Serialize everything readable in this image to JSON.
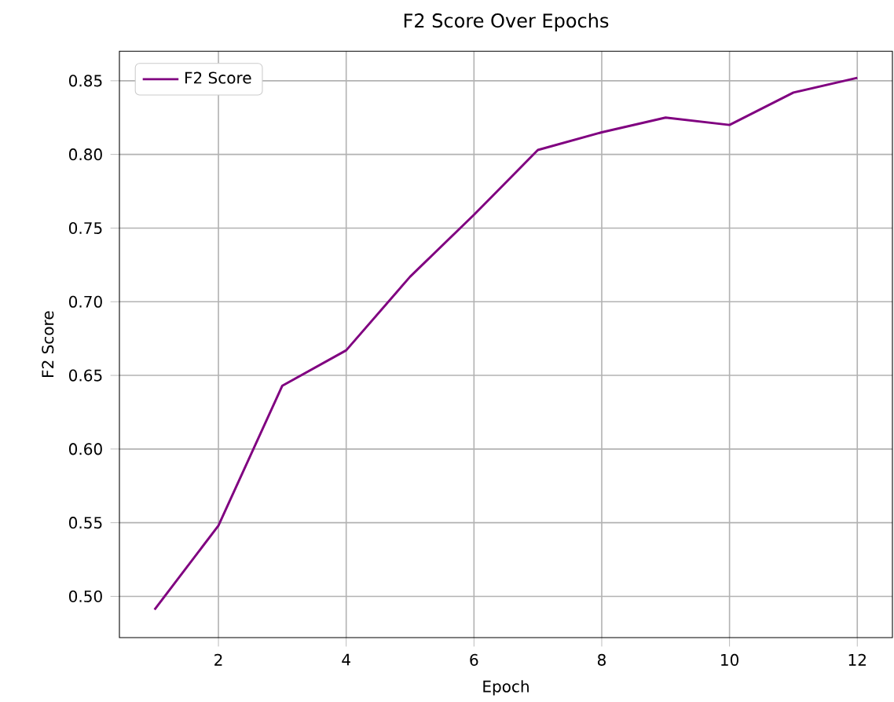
{
  "chart_data": {
    "type": "line",
    "title": "F2 Score Over Epochs",
    "xlabel": "Epoch",
    "ylabel": "F2 Score",
    "x": [
      1,
      2,
      3,
      4,
      5,
      6,
      7,
      8,
      9,
      10,
      11,
      12
    ],
    "series": [
      {
        "name": "F2 Score",
        "color": "#800080",
        "values": [
          0.491,
          0.548,
          0.643,
          0.667,
          0.717,
          0.759,
          0.803,
          0.815,
          0.825,
          0.82,
          0.842,
          0.852
        ]
      }
    ],
    "xlim": [
      0.45,
      12.55
    ],
    "ylim": [
      0.472,
      0.87
    ],
    "xticks": [
      2,
      4,
      6,
      8,
      10,
      12
    ],
    "yticks": [
      {
        "value": 0.5,
        "label": "0.50"
      },
      {
        "value": 0.55,
        "label": "0.55"
      },
      {
        "value": 0.6,
        "label": "0.60"
      },
      {
        "value": 0.65,
        "label": "0.65"
      },
      {
        "value": 0.7,
        "label": "0.70"
      },
      {
        "value": 0.75,
        "label": "0.75"
      },
      {
        "value": 0.8,
        "label": "0.80"
      },
      {
        "value": 0.85,
        "label": "0.85"
      }
    ],
    "grid": true,
    "legend": "top left",
    "marker": "none",
    "line_style": "solid"
  }
}
